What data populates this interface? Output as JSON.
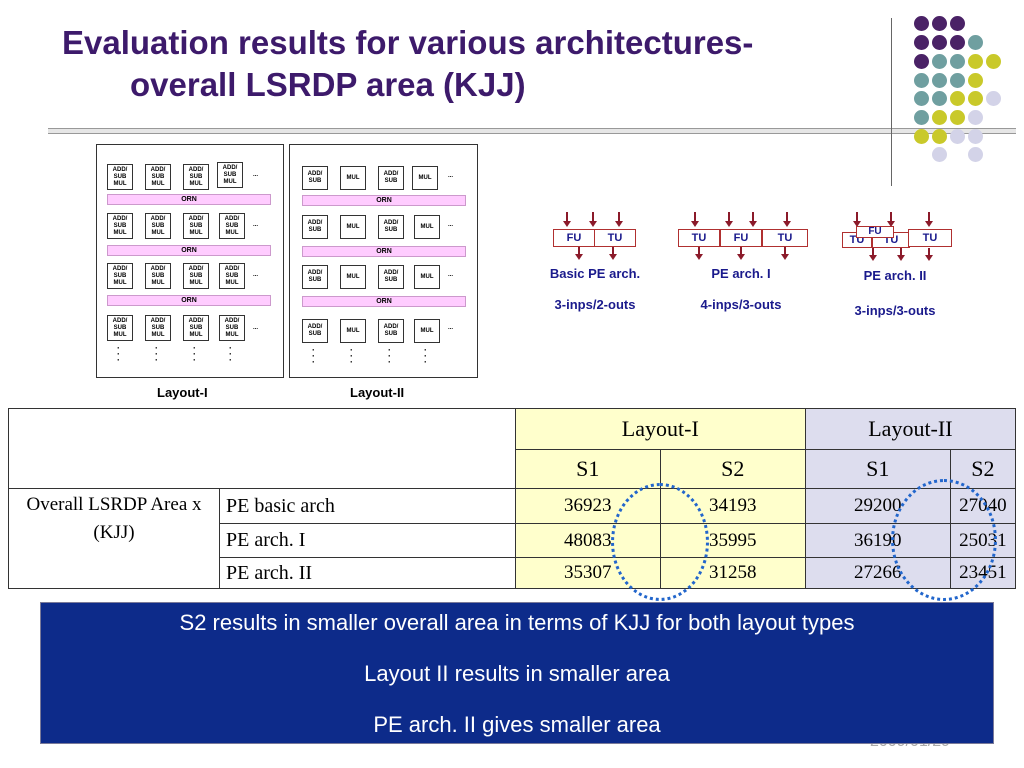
{
  "title": {
    "line1": "Evaluation results for various architectures-",
    "line2": "overall LSRDP area (KJJ)"
  },
  "layouts": {
    "layout1": {
      "label": "Layout-I",
      "cell_label": "ADD/\nSUB\nMUL",
      "orn_label": "ORN",
      "ellipsis": "..."
    },
    "layout2": {
      "label": "Layout-II",
      "addsub_label": "ADD/\nSUB",
      "mul_label": "MUL",
      "orn_label": "ORN",
      "ellipsis": "..."
    }
  },
  "pe_archs": [
    {
      "cells": [
        "FU",
        "TU"
      ],
      "caption": "Basic PE arch.",
      "io": "3-inps/2-outs"
    },
    {
      "cells": [
        "TU",
        "FU",
        "TU"
      ],
      "caption": "PE arch. I",
      "io": "4-inps/3-outs"
    },
    {
      "cells": [
        "TU",
        "TU",
        "TU"
      ],
      "overlay": "FU",
      "caption": "PE arch. II",
      "io": "3-inps/3-outs"
    }
  ],
  "table": {
    "header_layout1": "Layout-I",
    "header_layout2": "Layout-II",
    "sub_headers": [
      "S1",
      "S2",
      "S1",
      "S2"
    ],
    "row_group_label": "Overall LSRDP Area x (KJJ)",
    "rows": [
      {
        "label": "PE basic arch",
        "values": [
          "36923",
          "34193",
          "29200",
          "27040"
        ]
      },
      {
        "label": "PE arch. I",
        "values": [
          "48083",
          "35995",
          "36190",
          "25031"
        ]
      },
      {
        "label": "PE arch. II",
        "values": [
          "35307",
          "31258",
          "27266",
          "23451"
        ]
      }
    ]
  },
  "summary": [
    "S2 results in smaller overall area in terms of KJJ for both layout types",
    "Layout II results in smaller area",
    "PE arch. II gives smaller area"
  ],
  "footer_date": "2009/01/29",
  "colors": {
    "title": "#3d1a6b",
    "summary_bg": "#0d2b8a",
    "dot_purple": "#4a2266",
    "dot_teal": "#6f9fa0",
    "dot_yellow": "#c9c92a",
    "dot_lavender": "#d3d3e8",
    "layout1_fill": "#ffffcc",
    "layout2_fill": "#ddddee",
    "orn_fill": "#ffccff"
  }
}
